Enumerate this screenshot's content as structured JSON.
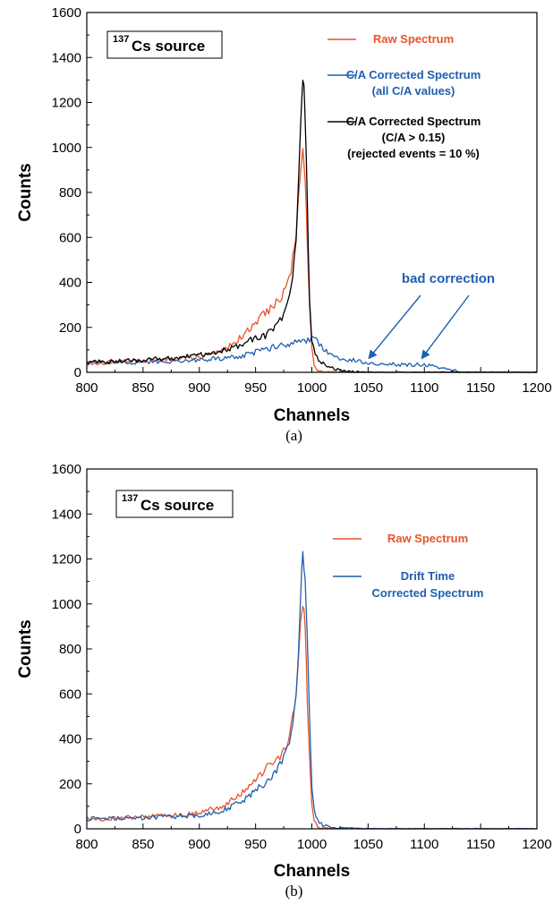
{
  "colors": {
    "raw": "#e8542a",
    "blue": "#1f5fb0",
    "black": "#000000"
  },
  "chart_data": [
    {
      "type": "line",
      "panel_label": "(a)",
      "xlabel": "Channels",
      "ylabel": "Counts",
      "xlim": [
        800,
        1200
      ],
      "ylim": [
        0,
        1600
      ],
      "xticks": [
        800,
        850,
        900,
        950,
        1000,
        1050,
        1100,
        1150,
        1200
      ],
      "yticks": [
        0,
        200,
        400,
        600,
        800,
        1000,
        1200,
        1400,
        1600
      ],
      "source_label": {
        "sup": "137",
        "text": "Cs source"
      },
      "legend": [
        {
          "lines": [
            "Raw Spectrum"
          ],
          "color": "#e8542a"
        },
        {
          "lines": [
            "C/A Corrected Spectrum",
            "(all C/A values)"
          ],
          "color": "#1f5fb0"
        },
        {
          "lines": [
            "C/A Corrected Spectrum",
            "(C/A > 0.15)",
            "(rejected events = 10 %)"
          ],
          "color": "#000000"
        }
      ],
      "annotation": {
        "text": "bad correction",
        "color": "#1f5fb0",
        "arrow_targets": [
          [
            1051,
            120
          ],
          [
            1098,
            120
          ]
        ]
      },
      "series": [
        {
          "name": "Raw Spectrum",
          "color": "#e8542a",
          "x": [
            800,
            820,
            840,
            860,
            880,
            900,
            910,
            920,
            930,
            940,
            950,
            960,
            965,
            970,
            975,
            980,
            983,
            986,
            988,
            990,
            992,
            993,
            994,
            995,
            996,
            998,
            1000,
            1002,
            1005,
            1010,
            1050,
            1100,
            1150,
            1200
          ],
          "y": [
            40,
            45,
            50,
            55,
            60,
            70,
            85,
            100,
            130,
            170,
            220,
            275,
            285,
            320,
            350,
            420,
            500,
            620,
            760,
            900,
            960,
            950,
            880,
            750,
            560,
            300,
            100,
            40,
            10,
            3,
            0,
            0,
            0,
            0
          ]
        },
        {
          "name": "C/A Corrected Spectrum (all C/A values)",
          "color": "#1f5fb0",
          "x": [
            800,
            820,
            840,
            860,
            880,
            900,
            910,
            920,
            930,
            940,
            950,
            960,
            970,
            980,
            985,
            990,
            995,
            998,
            1000,
            1002,
            1005,
            1010,
            1020,
            1040,
            1060,
            1080,
            1100,
            1110,
            1120,
            1130,
            1140,
            1150,
            1200
          ],
          "y": [
            45,
            42,
            45,
            48,
            50,
            55,
            60,
            60,
            65,
            75,
            90,
            100,
            120,
            125,
            130,
            135,
            140,
            145,
            150,
            160,
            140,
            110,
            70,
            50,
            40,
            35,
            35,
            25,
            15,
            5,
            0,
            0,
            0
          ]
        },
        {
          "name": "C/A Corrected Spectrum (C/A > 0.15)",
          "color": "#000000",
          "x": [
            800,
            820,
            840,
            860,
            880,
            900,
            910,
            920,
            930,
            940,
            950,
            960,
            970,
            975,
            980,
            983,
            986,
            988,
            990,
            991,
            992,
            993,
            994,
            995,
            996,
            997,
            998,
            1000,
            1003,
            1006,
            1010,
            1015,
            1020,
            1030,
            1050,
            1200
          ],
          "y": [
            45,
            48,
            52,
            58,
            65,
            75,
            85,
            95,
            110,
            130,
            150,
            165,
            220,
            260,
            330,
            420,
            600,
            850,
            1100,
            1230,
            1290,
            1270,
            1150,
            980,
            750,
            500,
            300,
            130,
            80,
            60,
            40,
            25,
            15,
            5,
            0,
            0
          ]
        }
      ]
    },
    {
      "type": "line",
      "panel_label": "(b)",
      "xlabel": "Channels",
      "ylabel": "Counts",
      "xlim": [
        800,
        1200
      ],
      "ylim": [
        0,
        1600
      ],
      "xticks": [
        800,
        850,
        900,
        950,
        1000,
        1050,
        1100,
        1150,
        1200
      ],
      "yticks": [
        0,
        200,
        400,
        600,
        800,
        1000,
        1200,
        1400,
        1600
      ],
      "source_label": {
        "sup": "137",
        "text": "Cs source"
      },
      "legend": [
        {
          "lines": [
            "Raw Spectrum"
          ],
          "color": "#e8542a"
        },
        {
          "lines": [
            "Drift Time",
            "Corrected Spectrum"
          ],
          "color": "#1f5fb0"
        }
      ],
      "series": [
        {
          "name": "Raw Spectrum",
          "color": "#e8542a",
          "x": [
            800,
            820,
            840,
            860,
            880,
            900,
            910,
            920,
            930,
            940,
            950,
            960,
            965,
            970,
            975,
            980,
            983,
            986,
            988,
            990,
            992,
            993,
            994,
            995,
            996,
            998,
            1000,
            1002,
            1005,
            1010,
            1050,
            1100,
            1150,
            1200
          ],
          "y": [
            45,
            45,
            50,
            55,
            60,
            70,
            85,
            100,
            130,
            170,
            220,
            275,
            285,
            320,
            340,
            420,
            500,
            620,
            760,
            900,
            960,
            950,
            880,
            750,
            560,
            300,
            100,
            40,
            10,
            3,
            0,
            0,
            0,
            0
          ]
        },
        {
          "name": "Drift Time Corrected Spectrum",
          "color": "#1f5fb0",
          "x": [
            800,
            820,
            840,
            860,
            880,
            900,
            910,
            920,
            930,
            940,
            950,
            960,
            970,
            975,
            980,
            983,
            986,
            988,
            990,
            991,
            992,
            993,
            994,
            995,
            996,
            998,
            1000,
            1002,
            1005,
            1010,
            1020,
            1050,
            1200
          ],
          "y": [
            45,
            45,
            48,
            50,
            55,
            60,
            70,
            80,
            100,
            130,
            170,
            210,
            270,
            310,
            380,
            460,
            600,
            780,
            1000,
            1130,
            1200,
            1190,
            1120,
            1000,
            820,
            480,
            200,
            80,
            40,
            15,
            5,
            0,
            0
          ]
        }
      ]
    }
  ]
}
